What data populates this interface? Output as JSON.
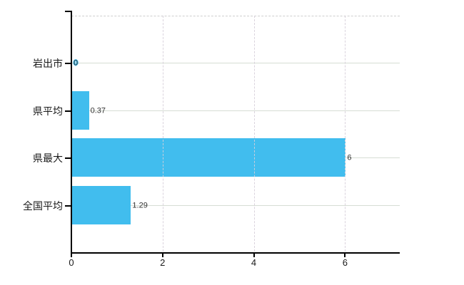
{
  "chart_data": {
    "type": "bar",
    "orientation": "horizontal",
    "title": "",
    "xlabel": "",
    "ylabel": "",
    "categories": [
      "岩出市",
      "県平均",
      "県最大",
      "全国平均"
    ],
    "values": [
      0,
      0.37,
      6,
      1.29
    ],
    "value_labels": [
      "0",
      "0.37",
      "6",
      "1.29"
    ],
    "xlim": [
      0,
      7.2
    ],
    "xticks": [
      0,
      2,
      4,
      6
    ],
    "xtick_labels": [
      "0",
      "2",
      "4",
      "6"
    ],
    "grid": true,
    "legend": "none",
    "colors": {
      "bar": "#41bdee",
      "axis": "#000000",
      "hgrid": "#d6ddd4",
      "vgrid": "#d7cfda",
      "top_border": "#cfcfcf",
      "text": "#1a1a1a",
      "value_text": "#333333",
      "background": "#ffffff"
    }
  }
}
